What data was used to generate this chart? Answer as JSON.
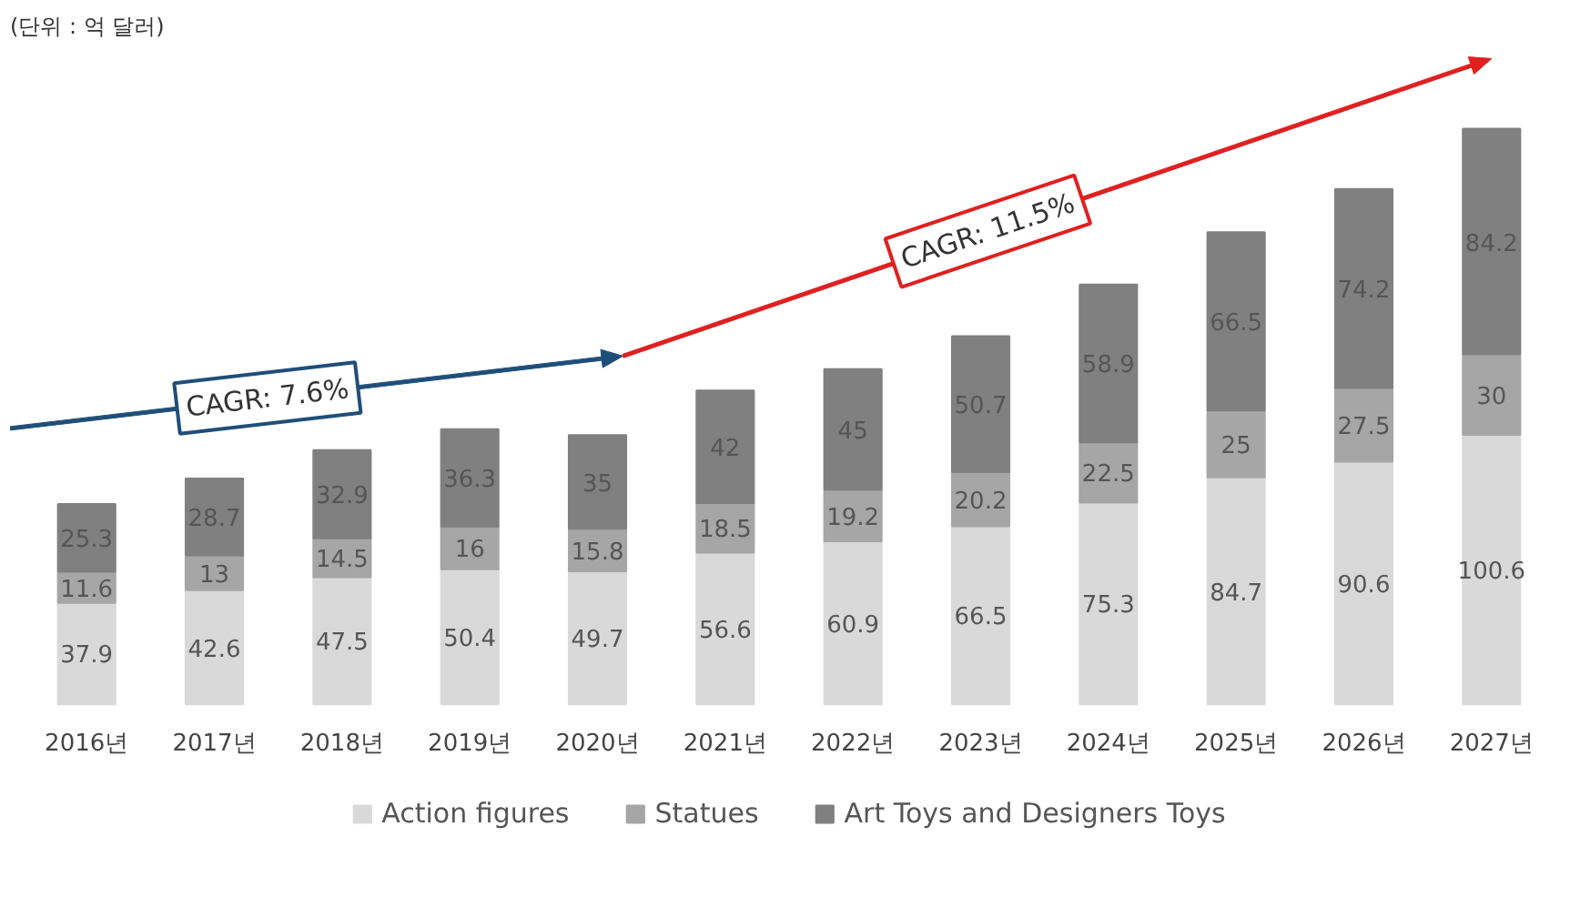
{
  "chart_data": {
    "type": "bar",
    "stacked": true,
    "data_labels": true,
    "legend": "bottom",
    "subtitle": "(단위 : 억 달러)",
    "annotations": [
      "CAGR: 7.6%",
      "CAGR: 11.5%"
    ],
    "categories": [
      "2016년",
      "2017년",
      "2018년",
      "2019년",
      "2020년",
      "2021년",
      "2022년",
      "2023년",
      "2024년",
      "2025년",
      "2026년",
      "2027년"
    ],
    "series": [
      {
        "name": "Action figures",
        "color": "#d9d9d9",
        "values": [
          37.9,
          42.6,
          47.5,
          50.4,
          49.7,
          56.6,
          60.9,
          66.5,
          75.3,
          84.7,
          90.6,
          100.6
        ]
      },
      {
        "name": "Statues",
        "color": "#a6a6a6",
        "values": [
          11.6,
          13,
          14.5,
          16,
          15.8,
          18.5,
          19.2,
          20.2,
          22.5,
          25,
          27.5,
          30
        ]
      },
      {
        "name": "Art Toys and Designers Toys",
        "color": "#808080",
        "values": [
          25.3,
          28.7,
          32.9,
          36.3,
          35,
          42,
          45,
          50.7,
          58.9,
          66.5,
          74.2,
          84.2
        ]
      }
    ]
  }
}
